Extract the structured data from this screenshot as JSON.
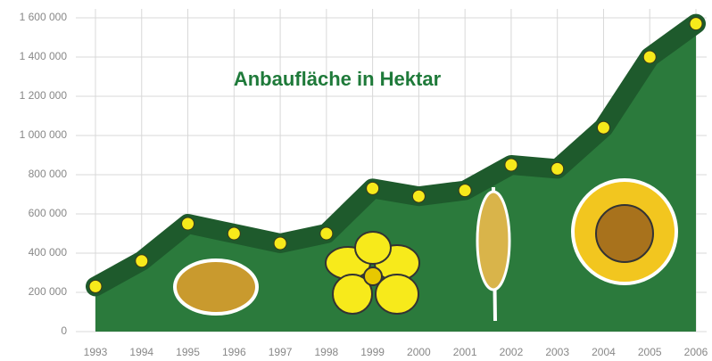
{
  "chart_data": {
    "type": "area",
    "title": "Anbaufläche in Hektar",
    "categories": [
      "1993",
      "1994",
      "1995",
      "1996",
      "1997",
      "1998",
      "1999",
      "2000",
      "2001",
      "2002",
      "2003",
      "2004",
      "2005",
      "2006"
    ],
    "values": [
      230000,
      360000,
      550000,
      500000,
      450000,
      500000,
      730000,
      690000,
      720000,
      850000,
      830000,
      1040000,
      1400000,
      1570000
    ],
    "color": "#2b7a3c",
    "line_color": "#1e5a2c",
    "marker_color": "#f7ea1b",
    "ylim": [
      0,
      1600000
    ],
    "yticks": [
      0,
      {
        "value": 200000,
        "label": "200 000"
      },
      {
        "value": 400000,
        "label": "400 000"
      },
      {
        "value": 600000,
        "label": "600 000"
      },
      {
        "value": 800000,
        "label": "800 000"
      },
      {
        "value": 1000000,
        "label": "1 000 000"
      },
      {
        "value": 1200000,
        "label": "1 200 000"
      },
      {
        "value": 1400000,
        "label": "1 400 000"
      },
      {
        "value": 1600000,
        "label": "1 600 000"
      }
    ],
    "grid": true
  }
}
